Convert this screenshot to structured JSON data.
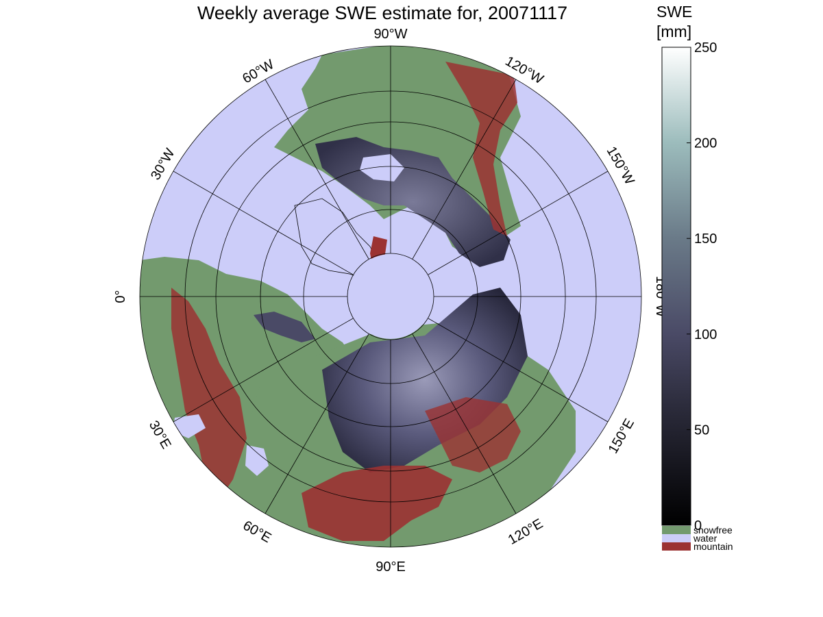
{
  "title": "Weekly average SWE estimate for, 20071117",
  "colorbar": {
    "title_line1": "SWE",
    "title_line2": "[mm]",
    "ticks": [
      {
        "value": 0,
        "label": "0"
      },
      {
        "value": 50,
        "label": "50"
      },
      {
        "value": 100,
        "label": "100"
      },
      {
        "value": 150,
        "label": "150"
      },
      {
        "value": 200,
        "label": "200"
      },
      {
        "value": 250,
        "label": "250"
      }
    ],
    "range": [
      0,
      250
    ],
    "categories": [
      {
        "label": "snowfree",
        "color": "#739a6e"
      },
      {
        "label": "water",
        "color": "#cccdf9"
      },
      {
        "label": "mountain",
        "color": "#9b3232"
      }
    ]
  },
  "map": {
    "projection": "polar stereographic",
    "colors": {
      "water": "#cccdf9",
      "snowfree": "#739a6e",
      "mountain": "#9b3232",
      "snow_low": "#1c1c26",
      "snow_mid": "#4e4e6e",
      "snow_high": "#8a8aa8"
    },
    "longitude_labels": [
      {
        "deg": 90,
        "label": "90°W"
      },
      {
        "deg": 120,
        "label": "120°W"
      },
      {
        "deg": 150,
        "label": "150°W"
      },
      {
        "deg": 180,
        "label": "180°W"
      },
      {
        "deg": 60,
        "label": "60°W"
      },
      {
        "deg": 30,
        "label": "30°W"
      },
      {
        "deg": 0,
        "label": "0°"
      },
      {
        "deg": -30,
        "label": "30°E"
      },
      {
        "deg": -60,
        "label": "60°E"
      },
      {
        "deg": -90,
        "label": "90°E"
      },
      {
        "deg": -120,
        "label": "120°E"
      },
      {
        "deg": -150,
        "label": "150°E"
      }
    ]
  }
}
